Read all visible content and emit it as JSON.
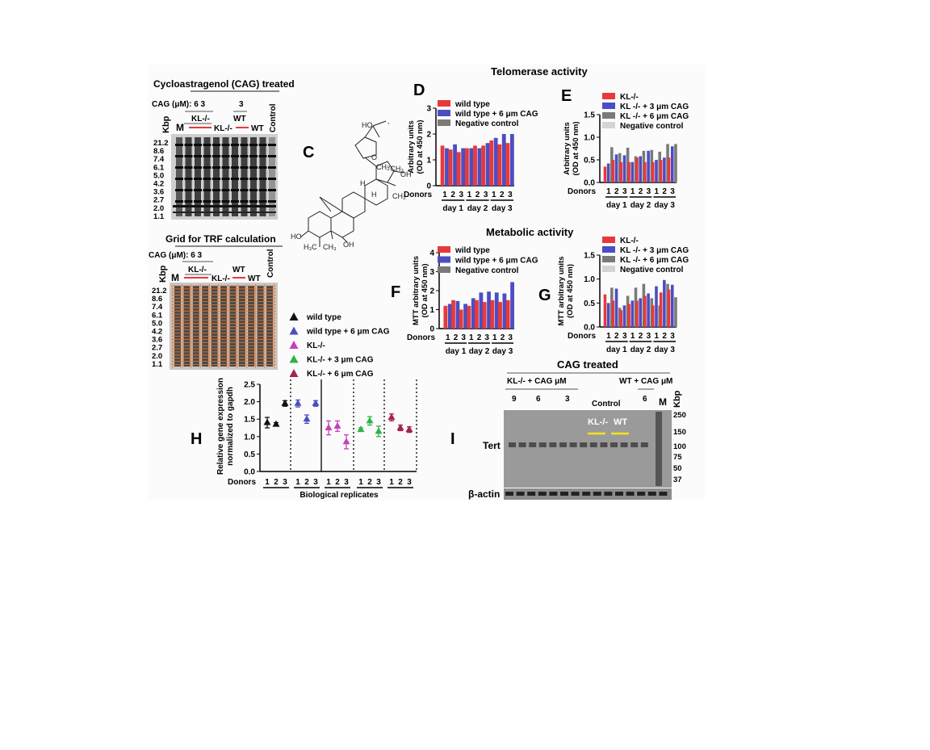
{
  "panelA": {
    "title": "Cycloastragenol (CAG) treated",
    "cag_label": "CAG (μM): 6   3",
    "cag_3": "3",
    "kl": "KL-/-",
    "wt": "WT",
    "m": "M",
    "control": "Control",
    "kbp": "Kbp",
    "ladder": [
      "21.2",
      "8.6",
      "7.4",
      "6.1",
      "5.0",
      "4.2",
      "3.6",
      "2.7",
      "2.0",
      "1.1"
    ]
  },
  "panelB": {
    "title": "Grid for TRF calculation",
    "cag_label": "CAG (μM): 6   3",
    "kl": "KL-/-",
    "wt": "WT",
    "m": "M",
    "control": "Control",
    "kbp": "Kbp",
    "ladder": [
      "21.2",
      "8.6",
      "7.4",
      "6.1",
      "5.0",
      "4.2",
      "3.6",
      "2.7",
      "2.0",
      "1.1"
    ]
  },
  "panelC": {
    "letter": "C"
  },
  "colors": {
    "red": "#e8393a",
    "blue": "#4a4ec2",
    "gray": "#7a7a7a",
    "lightgray": "#d4d4d4",
    "green": "#2db34a",
    "magenta": "#c242b9",
    "maroon": "#a52350",
    "black": "#111111"
  },
  "telomerase_title": "Telomerase activity",
  "metabolic_title": "Metabolic activity",
  "common": {
    "donors": "Donors",
    "days": [
      "day 1",
      "day 2",
      "day 3"
    ],
    "donor_nums": [
      "1",
      "2",
      "3"
    ]
  },
  "chart_data": [
    {
      "id": "D",
      "type": "bar",
      "letter": "D",
      "ylabel": "Arbitrary units",
      "ylabel2": "(OD at 450 nm)",
      "ylim": [
        0,
        3
      ],
      "yticks": [
        "0",
        "1",
        "2",
        "3"
      ],
      "legend": [
        "wild type",
        "wild type + 6 μm CAG",
        "Negative control"
      ],
      "series": [
        {
          "name": "wild type",
          "values": [
            1.55,
            1.4,
            1.3,
            1.45,
            1.55,
            1.55,
            1.75,
            1.6,
            1.65
          ]
        },
        {
          "name": "wild type + 6 μm CAG",
          "values": [
            1.45,
            1.6,
            1.45,
            1.45,
            1.45,
            1.65,
            1.85,
            2.0,
            2.0
          ]
        }
      ]
    },
    {
      "id": "E",
      "type": "bar",
      "letter": "E",
      "ylabel": "Arbitrary units",
      "ylabel2": "(OD at 450 nm)",
      "ylim": [
        0,
        1.5
      ],
      "yticks": [
        "0.0",
        "0.5",
        "1.0",
        "1.5"
      ],
      "legend": [
        "KL-/-",
        "KL -/- + 3 μm CAG",
        "KL -/- + 6 μm CAG",
        "Negative control"
      ],
      "series": [
        {
          "name": "KL-/-",
          "values": [
            0.35,
            0.5,
            0.45,
            0.45,
            0.55,
            0.45,
            0.45,
            0.5,
            0.55
          ]
        },
        {
          "name": "KL -/- + 3 μm CAG",
          "values": [
            0.42,
            0.62,
            0.6,
            0.45,
            0.58,
            0.7,
            0.5,
            0.55,
            0.8
          ]
        },
        {
          "name": "KL -/- + 6 μm CAG",
          "values": [
            0.78,
            0.65,
            0.77,
            0.58,
            0.7,
            0.72,
            0.68,
            0.85,
            0.85
          ]
        }
      ]
    },
    {
      "id": "F",
      "type": "bar",
      "letter": "F",
      "ylabel": "MTT arbitrary units",
      "ylabel2": "(OD at 450 nm)",
      "ylim": [
        0,
        4
      ],
      "yticks": [
        "0",
        "1",
        "2",
        "3",
        "4"
      ],
      "legend": [
        "wild type",
        "wild type + 6 μm CAG",
        "Negative control"
      ],
      "series": [
        {
          "name": "wild type",
          "values": [
            1.2,
            1.5,
            1.0,
            1.2,
            1.5,
            1.4,
            1.5,
            1.4,
            1.5
          ]
        },
        {
          "name": "wild type + 6 μm CAG",
          "values": [
            1.3,
            1.45,
            1.3,
            1.6,
            1.9,
            1.95,
            1.9,
            1.85,
            2.45
          ]
        }
      ]
    },
    {
      "id": "G",
      "type": "bar",
      "letter": "G",
      "ylabel": "MTT arbitrary units",
      "ylabel2": "(OD at 450 nm)",
      "ylim": [
        0,
        1.5
      ],
      "yticks": [
        "0.0",
        "0.5",
        "1.0",
        "1.5"
      ],
      "legend": [
        "KL-/-",
        "KL -/- + 3 μm CAG",
        "KL -/- + 6 μm CAG",
        "Negative control"
      ],
      "series": [
        {
          "name": "KL-/-",
          "values": [
            0.68,
            0.55,
            0.35,
            0.48,
            0.55,
            0.65,
            0.45,
            0.72,
            0.78
          ]
        },
        {
          "name": "KL -/- + 3 μm CAG",
          "values": [
            0.5,
            0.8,
            0.45,
            0.55,
            0.6,
            0.7,
            0.85,
            0.98,
            0.88
          ]
        },
        {
          "name": "KL -/- + 6 μm CAG",
          "values": [
            0.82,
            0.4,
            0.65,
            0.82,
            0.9,
            0.6,
            0.45,
            0.9,
            0.62
          ]
        }
      ]
    },
    {
      "id": "H",
      "type": "scatter",
      "letter": "H",
      "ylabel": "Relative gene expression",
      "ylabel2": "normalized to gapdh",
      "xlabel": "Biological replicates",
      "ylim": [
        0,
        2.5
      ],
      "yticks": [
        "0.0",
        "0.5",
        "1.0",
        "1.5",
        "2.0",
        "2.5"
      ],
      "legend": [
        "wild type",
        "wild type + 6 μm CAG",
        "KL-/-",
        "KL-/- + 3 μm CAG",
        "KL-/- + 6 μm CAG"
      ],
      "groups": [
        {
          "name": "wild type",
          "values": [
            1.4,
            1.35,
            1.95
          ],
          "err": [
            0.15,
            0.05,
            0.08
          ]
        },
        {
          "name": "wild type + 6 μm CAG",
          "values": [
            1.95,
            1.5,
            1.95
          ],
          "err": [
            0.1,
            0.12,
            0.08
          ]
        },
        {
          "name": "KL-/-",
          "values": [
            1.25,
            1.3,
            0.85
          ],
          "err": [
            0.2,
            0.15,
            0.2
          ]
        },
        {
          "name": "KL-/- + 3 μm CAG",
          "values": [
            1.2,
            1.45,
            1.15
          ],
          "err": [
            0.05,
            0.12,
            0.15
          ]
        },
        {
          "name": "KL-/- + 6 μm CAG",
          "values": [
            1.55,
            1.25,
            1.2
          ],
          "err": [
            0.1,
            0.08,
            0.08
          ]
        }
      ]
    }
  ],
  "panelI": {
    "letter": "I",
    "title": "CAG treated",
    "left_group": "KL-/- + CAG μM",
    "right_group": "WT + CAG μM",
    "doses": [
      "9",
      "6",
      "3"
    ],
    "control": "Control",
    "dose_right": "6",
    "m": "M",
    "kbp": "Kbp",
    "kl": "KL-/-",
    "wt": "WT",
    "tert": "Tert",
    "actin": "β-actin",
    "markers": [
      "250",
      "150",
      "100",
      "75",
      "50",
      "37"
    ]
  }
}
